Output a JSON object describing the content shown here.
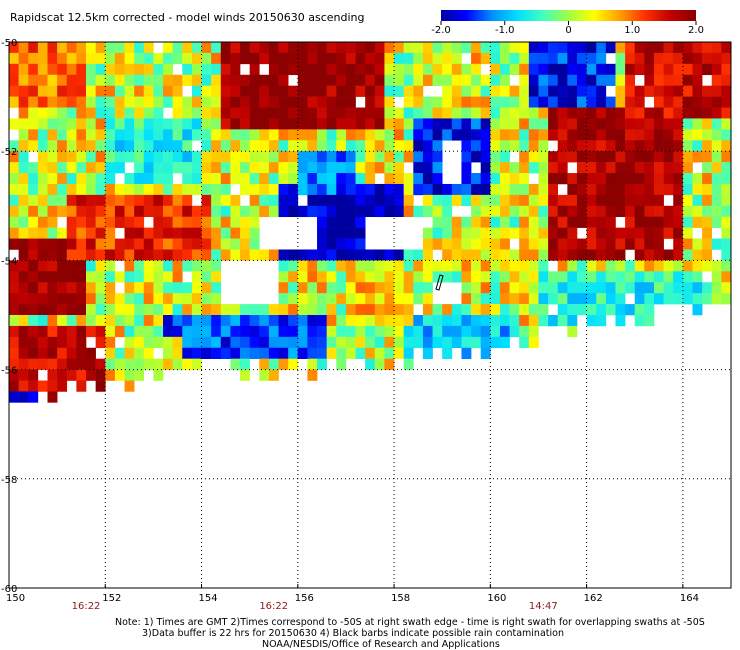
{
  "chart_data": {
    "type": "heatmap",
    "title": "Rapidscat 12.5km corrected - model winds 20150630 ascending",
    "colorbar": {
      "ticks": [
        "-2.0",
        "-1.0",
        "0",
        "1.0",
        "2.0"
      ],
      "range": [
        -2.0,
        2.0
      ],
      "colors": [
        "#0000a0",
        "#0000ff",
        "#0090ff",
        "#00e0ff",
        "#40ffc0",
        "#a0ff40",
        "#ffff00",
        "#ffa000",
        "#ff3000",
        "#c00000",
        "#8b0000"
      ]
    },
    "xaxis": {
      "range": [
        150,
        165
      ],
      "ticks": [
        150,
        152,
        154,
        156,
        158,
        160,
        162,
        164
      ],
      "tick_labels": [
        "150",
        "152",
        "154",
        "156",
        "158",
        "160",
        "162",
        "164"
      ]
    },
    "yaxis": {
      "range": [
        -60,
        -50
      ],
      "ticks": [
        -50,
        -52,
        -54,
        -56,
        -58,
        -60
      ],
      "tick_labels": [
        "-50",
        "-52",
        "-54",
        "-56",
        "-58",
        "-60"
      ]
    },
    "grid": true,
    "swath_times": [
      {
        "lon": 151.6,
        "label": "16:22"
      },
      {
        "lon": 155.5,
        "label": "16:22"
      },
      {
        "lon": 161.1,
        "label": "14:47"
      }
    ],
    "data_extent": {
      "lon_min": 150.0,
      "lon_max": 165.0,
      "south_edge_lat_by_lon": [
        [
          150.0,
          -56.7
        ],
        [
          151.0,
          -56.5
        ],
        [
          152.0,
          -56.2
        ],
        [
          152.5,
          -56.3
        ],
        [
          153.0,
          -56.0
        ],
        [
          154.0,
          -55.9
        ],
        [
          155.0,
          -56.0
        ],
        [
          156.0,
          -56.0
        ],
        [
          157.0,
          -55.9
        ],
        [
          158.0,
          -55.9
        ],
        [
          159.0,
          -55.7
        ],
        [
          160.0,
          -55.6
        ],
        [
          161.0,
          -55.4
        ],
        [
          162.0,
          -55.2
        ],
        [
          163.0,
          -55.1
        ],
        [
          164.0,
          -54.9
        ],
        [
          165.0,
          -54.7
        ]
      ],
      "no_data_gaps": [
        {
          "lon": [
            154.4,
            155.6
          ],
          "lat": [
            -54.9,
            -54.1
          ]
        },
        {
          "lon": [
            155.2,
            156.3
          ],
          "lat": [
            -53.9,
            -53.3
          ]
        },
        {
          "lon": [
            157.4,
            158.6
          ],
          "lat": [
            -53.8,
            -53.2
          ]
        },
        {
          "lon": [
            158.7,
            159.3
          ],
          "lat": [
            -54.9,
            -54.5
          ]
        },
        {
          "lon": [
            158.9,
            159.3
          ],
          "lat": [
            -52.6,
            -51.8
          ]
        }
      ]
    },
    "regions": [
      {
        "lon": [
          150.0,
          151.6
        ],
        "lat": [
          -55.0,
          -53.6
        ],
        "value": 1.9
      },
      {
        "lon": [
          150.0,
          152.0
        ],
        "lat": [
          -56.6,
          -55.2
        ],
        "value": 1.6
      },
      {
        "lon": [
          151.2,
          154.2
        ],
        "lat": [
          -54.0,
          -52.9
        ],
        "value": 1.3
      },
      {
        "lon": [
          154.4,
          157.8
        ],
        "lat": [
          -51.6,
          -50.0
        ],
        "value": 1.9
      },
      {
        "lon": [
          150.0,
          151.5
        ],
        "lat": [
          -51.3,
          -50.0
        ],
        "value": 1.0
      },
      {
        "lon": [
          161.2,
          164.0
        ],
        "lat": [
          -54.0,
          -51.2
        ],
        "value": 1.8
      },
      {
        "lon": [
          162.8,
          165.0
        ],
        "lat": [
          -51.4,
          -50.0
        ],
        "value": 1.6
      },
      {
        "lon": [
          155.6,
          158.2
        ],
        "lat": [
          -54.0,
          -52.6
        ],
        "value": -1.9
      },
      {
        "lon": [
          153.2,
          156.6
        ],
        "lat": [
          -55.8,
          -55.1
        ],
        "value": -1.4
      },
      {
        "lon": [
          160.8,
          162.6
        ],
        "lat": [
          -51.3,
          -50.0
        ],
        "value": -1.6
      },
      {
        "lon": [
          158.4,
          160.0
        ],
        "lat": [
          -52.8,
          -51.4
        ],
        "value": -1.6
      },
      {
        "lon": [
          156.0,
          157.2
        ],
        "lat": [
          -52.8,
          -52.0
        ],
        "value": -1.3
      },
      {
        "lon": [
          158.2,
          160.6
        ],
        "lat": [
          -55.9,
          -55.0
        ],
        "value": -0.9
      },
      {
        "lon": [
          161.0,
          164.6
        ],
        "lat": [
          -55.2,
          -54.3
        ],
        "value": -0.6
      },
      {
        "lon": [
          150.0,
          150.6
        ],
        "lat": [
          -56.9,
          -56.5
        ],
        "value": -1.9
      },
      {
        "lon": [
          152.0,
          154.0
        ],
        "lat": [
          -52.6,
          -51.4
        ],
        "value": -0.6
      },
      {
        "lon": [
          157.0,
          158.4
        ],
        "lat": [
          -55.2,
          -54.2
        ],
        "value": 0.6
      },
      {
        "lon": [
          159.2,
          161.0
        ],
        "lat": [
          -54.3,
          -53.4
        ],
        "value": 0.5
      },
      {
        "lon": [
          152.4,
          153.6
        ],
        "lat": [
          -56.2,
          -55.4
        ],
        "value": 0.3
      }
    ],
    "notes": [
      "Note: 1) Times are GMT 2)Times correspond to -50S at right swath edge - time is right swath for overlapping swaths at -50S",
      "3)Data buffer is 22 hrs for 20150630 4) Black barbs indicate possible rain contamination",
      "NOAA/NESDIS/Office of Research and Applications"
    ]
  }
}
